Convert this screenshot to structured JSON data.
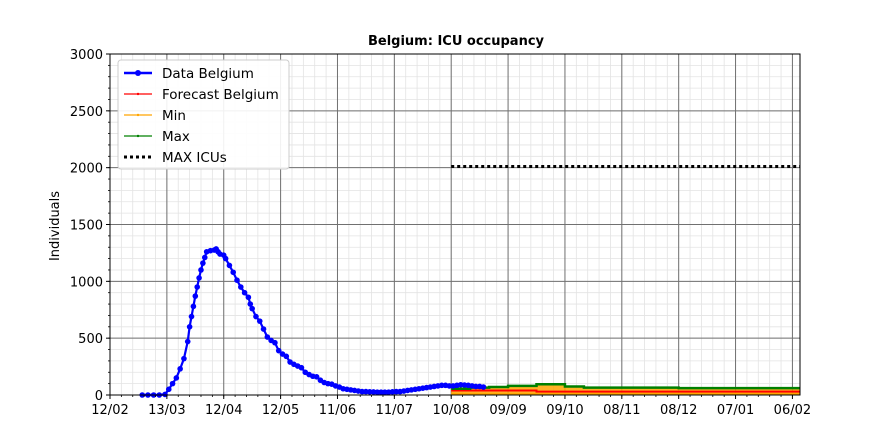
{
  "chart_data": {
    "type": "line",
    "title": "Belgium: ICU occupancy",
    "xlabel": "",
    "ylabel": "Individuals",
    "x_tick_labels": [
      "12/02",
      "13/03",
      "12/04",
      "12/05",
      "11/06",
      "11/07",
      "10/08",
      "09/09",
      "09/10",
      "08/11",
      "08/12",
      "07/01",
      "06/02"
    ],
    "y_tick_labels": [
      "0",
      "500",
      "1000",
      "1500",
      "2000",
      "2500",
      "3000"
    ],
    "ylim": [
      0,
      3000
    ],
    "xlim_days": [
      0,
      364
    ],
    "grid": true,
    "legend_position": "top-left",
    "series": [
      {
        "name": "Data Belgium",
        "color": "#0000ff",
        "style": "line-dots",
        "points": [
          [
            17,
            0
          ],
          [
            20,
            0
          ],
          [
            23,
            0
          ],
          [
            26,
            0
          ],
          [
            29,
            5
          ],
          [
            31,
            50
          ],
          [
            33,
            100
          ],
          [
            35,
            150
          ],
          [
            37,
            230
          ],
          [
            39,
            320
          ],
          [
            41,
            470
          ],
          [
            42,
            600
          ],
          [
            43,
            690
          ],
          [
            44,
            780
          ],
          [
            45,
            870
          ],
          [
            46,
            950
          ],
          [
            47,
            1030
          ],
          [
            48,
            1100
          ],
          [
            49,
            1160
          ],
          [
            50,
            1210
          ],
          [
            51,
            1260
          ],
          [
            53,
            1270
          ],
          [
            55,
            1275
          ],
          [
            56,
            1285
          ],
          [
            57,
            1260
          ],
          [
            58,
            1240
          ],
          [
            60,
            1230
          ],
          [
            61,
            1200
          ],
          [
            63,
            1140
          ],
          [
            65,
            1080
          ],
          [
            67,
            1010
          ],
          [
            69,
            950
          ],
          [
            71,
            900
          ],
          [
            73,
            860
          ],
          [
            74,
            800
          ],
          [
            75,
            760
          ],
          [
            77,
            690
          ],
          [
            79,
            650
          ],
          [
            81,
            580
          ],
          [
            83,
            510
          ],
          [
            85,
            480
          ],
          [
            87,
            460
          ],
          [
            89,
            390
          ],
          [
            91,
            360
          ],
          [
            93,
            340
          ],
          [
            95,
            290
          ],
          [
            97,
            270
          ],
          [
            99,
            255
          ],
          [
            101,
            240
          ],
          [
            103,
            200
          ],
          [
            105,
            180
          ],
          [
            107,
            165
          ],
          [
            109,
            160
          ],
          [
            111,
            130
          ],
          [
            113,
            110
          ],
          [
            115,
            100
          ],
          [
            117,
            95
          ],
          [
            119,
            80
          ],
          [
            121,
            70
          ],
          [
            123,
            55
          ],
          [
            125,
            50
          ],
          [
            127,
            45
          ],
          [
            129,
            40
          ],
          [
            131,
            35
          ],
          [
            133,
            30
          ],
          [
            135,
            30
          ],
          [
            137,
            28
          ],
          [
            139,
            27
          ],
          [
            141,
            25
          ],
          [
            143,
            25
          ],
          [
            145,
            25
          ],
          [
            147,
            25
          ],
          [
            149,
            28
          ],
          [
            151,
            30
          ],
          [
            153,
            30
          ],
          [
            155,
            35
          ],
          [
            157,
            40
          ],
          [
            159,
            45
          ],
          [
            161,
            50
          ],
          [
            163,
            55
          ],
          [
            165,
            60
          ],
          [
            167,
            65
          ],
          [
            169,
            70
          ],
          [
            171,
            75
          ],
          [
            173,
            80
          ],
          [
            175,
            85
          ],
          [
            177,
            85
          ],
          [
            179,
            80
          ],
          [
            181,
            80
          ],
          [
            183,
            85
          ],
          [
            185,
            90
          ],
          [
            187,
            88
          ],
          [
            189,
            85
          ],
          [
            191,
            80
          ],
          [
            193,
            75
          ],
          [
            195,
            75
          ],
          [
            197,
            70
          ]
        ]
      },
      {
        "name": "Forecast Belgium",
        "color": "#ff0000",
        "style": "step",
        "points": [
          [
            180,
            40
          ],
          [
            220,
            40
          ],
          [
            225,
            30
          ],
          [
            364,
            30
          ]
        ]
      },
      {
        "name": "Min",
        "color": "#ffa500",
        "style": "step",
        "points": [
          [
            180,
            10
          ],
          [
            364,
            10
          ]
        ]
      },
      {
        "name": "Max",
        "color": "#008000",
        "style": "step",
        "points": [
          [
            180,
            55
          ],
          [
            190,
            65
          ],
          [
            200,
            70
          ],
          [
            210,
            80
          ],
          [
            225,
            95
          ],
          [
            240,
            75
          ],
          [
            250,
            65
          ],
          [
            290,
            65
          ],
          [
            300,
            60
          ],
          [
            364,
            60
          ]
        ]
      },
      {
        "name": "MAX ICUs",
        "color": "#000000",
        "style": "dotted",
        "points": [
          [
            180,
            2010
          ],
          [
            364,
            2010
          ]
        ]
      }
    ]
  }
}
